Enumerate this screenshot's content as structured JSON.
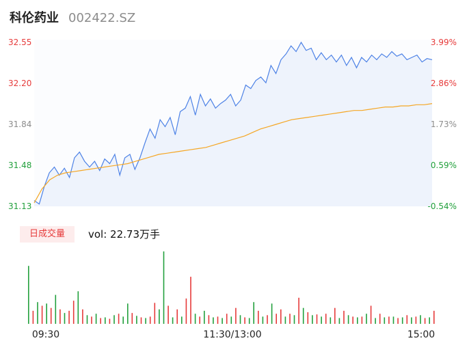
{
  "header": {
    "name": "科伦药业",
    "code": "002422.SZ"
  },
  "colors": {
    "up": "#e63a3a",
    "down": "#22a03c",
    "neutral": "#8c8c8c",
    "price_line": "#4d82e6",
    "avg_line": "#f5a623"
  },
  "chart_data": {
    "type": "line",
    "price_axis": {
      "ticks": [
        "32.55",
        "32.20",
        "31.84",
        "31.48",
        "31.13"
      ],
      "range": [
        31.13,
        32.55
      ]
    },
    "percent_axis": {
      "ticks": [
        "3.99%",
        "2.86%",
        "1.73%",
        "0.59%",
        "-0.54%"
      ],
      "range": [
        -0.54,
        3.99
      ]
    },
    "x_ticks": [
      "09:30",
      "11:30/13:00",
      "15:00"
    ],
    "series": [
      {
        "values": [
          31.18,
          31.15,
          31.3,
          31.42,
          31.47,
          31.4,
          31.46,
          31.38,
          31.55,
          31.6,
          31.52,
          31.47,
          31.52,
          31.44,
          31.54,
          31.5,
          31.58,
          31.4,
          31.55,
          31.58,
          31.45,
          31.55,
          31.68,
          31.8,
          31.72,
          31.88,
          31.82,
          31.9,
          31.75,
          31.95,
          31.98,
          32.08,
          31.92,
          32.1,
          32.0,
          32.06,
          31.98,
          32.02,
          32.05,
          32.1,
          32.0,
          32.05,
          32.18,
          32.15,
          32.22,
          32.25,
          32.2,
          32.35,
          32.28,
          32.4,
          32.45,
          32.52,
          32.47,
          32.55,
          32.48,
          32.5,
          32.4,
          32.46,
          32.4,
          32.44,
          32.38,
          32.44,
          32.35,
          32.42,
          32.33,
          32.42,
          32.38,
          32.44,
          32.4,
          32.45,
          32.42,
          32.47,
          32.43,
          32.45,
          32.4,
          32.42,
          32.44,
          32.38,
          32.41,
          32.4
        ]
      },
      {
        "values": [
          31.16,
          31.28,
          31.36,
          31.4,
          31.42,
          31.43,
          31.44,
          31.45,
          31.46,
          31.47,
          31.48,
          31.49,
          31.5,
          31.52,
          31.54,
          31.56,
          31.58,
          31.59,
          31.6,
          31.61,
          31.62,
          31.63,
          31.64,
          31.66,
          31.68,
          31.7,
          31.72,
          31.74,
          31.77,
          31.8,
          31.82,
          31.84,
          31.86,
          31.88,
          31.89,
          31.9,
          31.91,
          31.92,
          31.93,
          31.94,
          31.95,
          31.96,
          31.96,
          31.97,
          31.98,
          31.99,
          31.99,
          32.0,
          32.0,
          32.01,
          32.01,
          32.02
        ]
      }
    ],
    "volume_label": "日成交量",
    "volume_text": "vol: 22.73万手",
    "volume": [
      [
        80,
        "d"
      ],
      [
        18,
        "u"
      ],
      [
        30,
        "d"
      ],
      [
        25,
        "u"
      ],
      [
        28,
        "d"
      ],
      [
        22,
        "u"
      ],
      [
        40,
        "d"
      ],
      [
        20,
        "u"
      ],
      [
        15,
        "d"
      ],
      [
        18,
        "u"
      ],
      [
        32,
        "u"
      ],
      [
        45,
        "d"
      ],
      [
        20,
        "u"
      ],
      [
        12,
        "d"
      ],
      [
        10,
        "u"
      ],
      [
        14,
        "d"
      ],
      [
        8,
        "u"
      ],
      [
        9,
        "d"
      ],
      [
        7,
        "u"
      ],
      [
        12,
        "d"
      ],
      [
        14,
        "u"
      ],
      [
        10,
        "d"
      ],
      [
        28,
        "d"
      ],
      [
        15,
        "u"
      ],
      [
        11,
        "d"
      ],
      [
        9,
        "u"
      ],
      [
        8,
        "d"
      ],
      [
        10,
        "u"
      ],
      [
        29,
        "u"
      ],
      [
        20,
        "d"
      ],
      [
        100,
        "d"
      ],
      [
        25,
        "u"
      ],
      [
        9,
        "d"
      ],
      [
        20,
        "u"
      ],
      [
        10,
        "d"
      ],
      [
        35,
        "u"
      ],
      [
        65,
        "u"
      ],
      [
        14,
        "d"
      ],
      [
        10,
        "u"
      ],
      [
        18,
        "d"
      ],
      [
        12,
        "u"
      ],
      [
        9,
        "d"
      ],
      [
        10,
        "u"
      ],
      [
        8,
        "d"
      ],
      [
        14,
        "u"
      ],
      [
        10,
        "d"
      ],
      [
        22,
        "u"
      ],
      [
        12,
        "d"
      ],
      [
        9,
        "u"
      ],
      [
        8,
        "d"
      ],
      [
        30,
        "d"
      ],
      [
        18,
        "u"
      ],
      [
        10,
        "d"
      ],
      [
        12,
        "u"
      ],
      [
        28,
        "d"
      ],
      [
        14,
        "u"
      ],
      [
        20,
        "u"
      ],
      [
        10,
        "d"
      ],
      [
        14,
        "u"
      ],
      [
        12,
        "d"
      ],
      [
        36,
        "u"
      ],
      [
        22,
        "d"
      ],
      [
        16,
        "u"
      ],
      [
        12,
        "d"
      ],
      [
        13,
        "u"
      ],
      [
        10,
        "d"
      ],
      [
        14,
        "u"
      ],
      [
        9,
        "d"
      ],
      [
        22,
        "u"
      ],
      [
        8,
        "d"
      ],
      [
        18,
        "u"
      ],
      [
        12,
        "d"
      ],
      [
        10,
        "u"
      ],
      [
        9,
        "d"
      ],
      [
        10,
        "u"
      ],
      [
        14,
        "d"
      ],
      [
        25,
        "u"
      ],
      [
        8,
        "d"
      ],
      [
        14,
        "u"
      ],
      [
        9,
        "d"
      ],
      [
        10,
        "u"
      ],
      [
        10,
        "d"
      ],
      [
        8,
        "u"
      ],
      [
        9,
        "d"
      ],
      [
        12,
        "u"
      ],
      [
        9,
        "d"
      ],
      [
        10,
        "u"
      ],
      [
        12,
        "d"
      ],
      [
        8,
        "u"
      ],
      [
        9,
        "d"
      ],
      [
        18,
        "u"
      ]
    ]
  }
}
